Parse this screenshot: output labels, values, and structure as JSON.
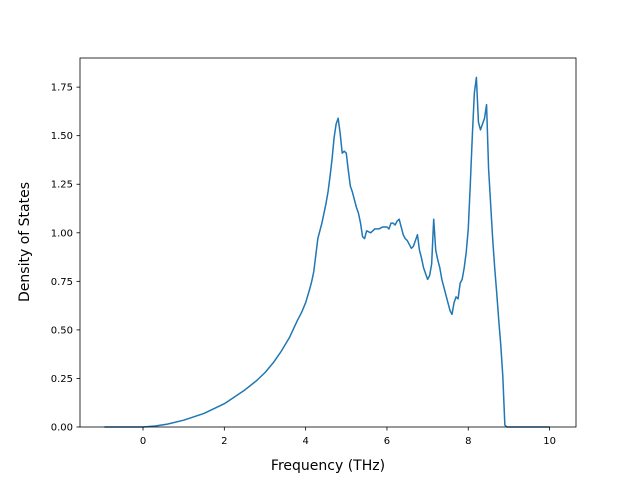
{
  "chart_data": {
    "type": "line",
    "title": "",
    "xlabel": "Frequency (THz)",
    "ylabel": "Density of States",
    "xlim": [
      -1.55,
      10.65
    ],
    "ylim": [
      0.0,
      1.9
    ],
    "xticks": [
      0,
      2,
      4,
      6,
      8,
      10
    ],
    "xtick_labels": [
      "0",
      "2",
      "4",
      "6",
      "8",
      "10"
    ],
    "yticks": [
      0.0,
      0.25,
      0.5,
      0.75,
      1.0,
      1.25,
      1.5,
      1.75
    ],
    "ytick_labels": [
      "0.00",
      "0.25",
      "0.50",
      "0.75",
      "1.00",
      "1.25",
      "1.50",
      "1.75"
    ],
    "grid": false,
    "legend": "none",
    "line_color": "#1f77b4",
    "series": [
      {
        "x": [
          -0.95,
          -0.5,
          0.0,
          0.3,
          0.6,
          1.0,
          1.5,
          2.0,
          2.5,
          2.8,
          3.0,
          3.2,
          3.4,
          3.6,
          3.8,
          3.9,
          4.0,
          4.1,
          4.15,
          4.2,
          4.3,
          4.4,
          4.5,
          4.55,
          4.6,
          4.65,
          4.7,
          4.75,
          4.8,
          4.85,
          4.9,
          4.95,
          5.0,
          5.05,
          5.1,
          5.15,
          5.2,
          5.25,
          5.3,
          5.35,
          5.4,
          5.45,
          5.5,
          5.6,
          5.7,
          5.8,
          5.9,
          6.0,
          6.05,
          6.1,
          6.15,
          6.2,
          6.25,
          6.3,
          6.35,
          6.4,
          6.45,
          6.5,
          6.55,
          6.6,
          6.65,
          6.7,
          6.75,
          6.8,
          6.85,
          6.9,
          6.95,
          7.0,
          7.05,
          7.1,
          7.15,
          7.2,
          7.25,
          7.3,
          7.35,
          7.4,
          7.45,
          7.5,
          7.55,
          7.6,
          7.65,
          7.7,
          7.75,
          7.8,
          7.85,
          7.9,
          7.95,
          8.0,
          8.05,
          8.1,
          8.15,
          8.2,
          8.25,
          8.3,
          8.35,
          8.4,
          8.45,
          8.5,
          8.55,
          8.6,
          8.65,
          8.7,
          8.75,
          8.8,
          8.85,
          8.9,
          8.95,
          9.0,
          9.05,
          9.1,
          9.15,
          9.3,
          9.6,
          10.0
        ],
        "y": [
          0.0,
          0.0,
          0.0,
          0.005,
          0.015,
          0.035,
          0.07,
          0.12,
          0.19,
          0.24,
          0.28,
          0.33,
          0.39,
          0.46,
          0.55,
          0.59,
          0.64,
          0.71,
          0.75,
          0.8,
          0.97,
          1.05,
          1.15,
          1.21,
          1.29,
          1.38,
          1.49,
          1.56,
          1.59,
          1.51,
          1.41,
          1.42,
          1.41,
          1.32,
          1.24,
          1.21,
          1.17,
          1.13,
          1.1,
          1.05,
          0.98,
          0.97,
          1.01,
          1.0,
          1.02,
          1.02,
          1.03,
          1.03,
          1.02,
          1.05,
          1.05,
          1.04,
          1.06,
          1.07,
          1.03,
          0.99,
          0.97,
          0.96,
          0.94,
          0.92,
          0.93,
          0.96,
          0.99,
          0.91,
          0.87,
          0.82,
          0.79,
          0.76,
          0.78,
          0.84,
          1.07,
          0.91,
          0.86,
          0.82,
          0.76,
          0.72,
          0.68,
          0.64,
          0.6,
          0.58,
          0.64,
          0.67,
          0.66,
          0.74,
          0.76,
          0.82,
          0.9,
          1.02,
          1.25,
          1.5,
          1.72,
          1.8,
          1.57,
          1.53,
          1.56,
          1.59,
          1.66,
          1.33,
          1.15,
          0.97,
          0.82,
          0.69,
          0.55,
          0.42,
          0.26,
          0.01,
          0.0,
          0.0,
          0.0,
          0.0,
          0.0,
          0.0,
          0.0,
          0.0
        ]
      }
    ]
  }
}
